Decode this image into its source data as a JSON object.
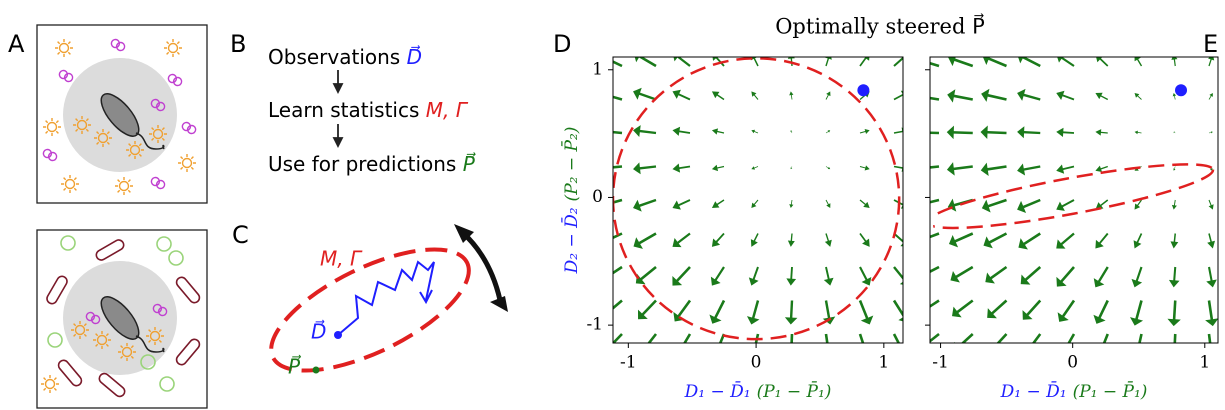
{
  "panel_labels": [
    "A",
    "B",
    "C",
    "D",
    "E"
  ],
  "flow": {
    "steps": [
      {
        "text": "Observations",
        "symbol": "D⃗"
      },
      {
        "text": "Learn statistics",
        "symbol": "M, Γ"
      },
      {
        "text": "Use for predictions",
        "symbol": "P⃗"
      }
    ]
  },
  "sketch": {
    "ellipse_label": "M, Γ",
    "d_label": "D⃗",
    "p_label": "P⃗"
  },
  "figure_title": "Optimally steered P⃗",
  "chart_data": [
    {
      "type": "quiver",
      "xlim": [
        -1.12,
        1.15
      ],
      "ylim": [
        -1.14,
        1.1
      ],
      "xticks": [
        -1,
        0,
        1
      ],
      "yticks": [
        -1,
        0,
        1
      ],
      "xlabel": {
        "main": "D₁ − D̄₁",
        "paren": "(P₁ − P̄₁)"
      },
      "ylabel": {
        "main": "D₂ − D̄₂",
        "paren": "(P₂ − P̄₂)"
      },
      "field_center": [
        0.34,
        0.37
      ],
      "arrow_color": "#1a7a1a",
      "point": {
        "x": 0.84,
        "y": 0.84,
        "color": "#1f1fff"
      },
      "ellipse": {
        "cx": 0,
        "cy": -0.01,
        "rx": 1.12,
        "ry": 1.1,
        "angle": 0,
        "color": "#e02020"
      }
    },
    {
      "type": "quiver",
      "xlim": [
        -1.08,
        1.1
      ],
      "ylim": [
        -1.14,
        1.1
      ],
      "xticks": [
        -1,
        0,
        1
      ],
      "yticks": [
        -1,
        0,
        1
      ],
      "xlabel": {
        "main": "D₁ − D̄₁",
        "paren": "(P₁ − P̄₁)"
      },
      "field_center": [
        0.85,
        0.45
      ],
      "arrow_color": "#1a7a1a",
      "point": {
        "x": 0.82,
        "y": 0.84,
        "color": "#1f1fff"
      },
      "ellipse": {
        "cx": -0.02,
        "cy": 0.01,
        "rx": 1.1,
        "ry": 0.14,
        "angle": 10.5,
        "color": "#e02020"
      }
    }
  ]
}
